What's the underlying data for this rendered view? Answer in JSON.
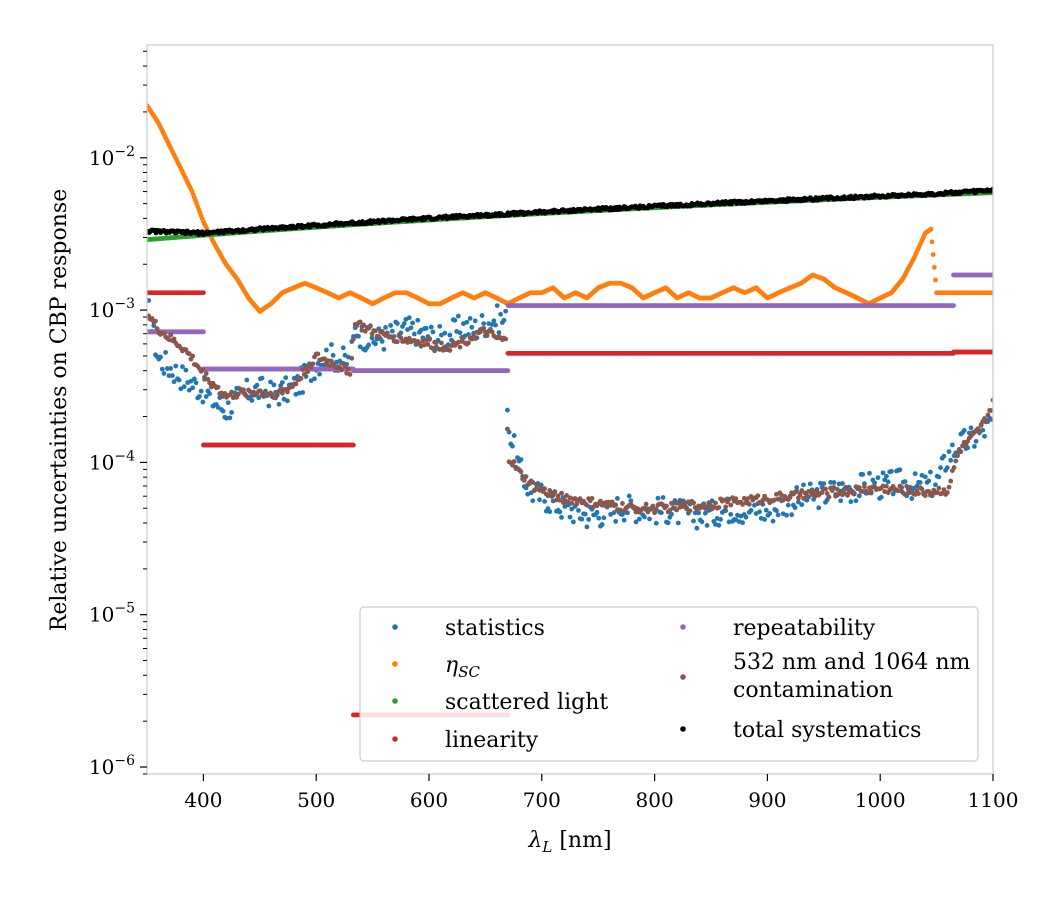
{
  "chart_data": {
    "type": "scatter",
    "xlabel": "λL [nm]",
    "ylabel": "Relative uncertainties on CBP response",
    "xlim": [
      350,
      1100
    ],
    "ylim": [
      9e-07,
      0.055
    ],
    "yscale": "log",
    "grid": false,
    "legend_position": "lower-right",
    "x_ticks": [
      400,
      500,
      600,
      700,
      800,
      900,
      1000,
      1100
    ],
    "x_tick_labels": [
      "400",
      "500",
      "600",
      "700",
      "800",
      "900",
      "1000",
      "1100"
    ],
    "y_ticks": [
      1e-06,
      1e-05,
      0.0001,
      0.001,
      0.01
    ],
    "y_tick_labels": [
      "10−6",
      "10−5",
      "10−4",
      "10−3",
      "10−2"
    ],
    "series": [
      {
        "name": "statistics",
        "color": "#1f77b4",
        "x": [
          350,
          360,
          370,
          380,
          390,
          400,
          410,
          420,
          430,
          440,
          450,
          460,
          470,
          480,
          490,
          500,
          510,
          520,
          530,
          535,
          540,
          550,
          560,
          570,
          580,
          590,
          600,
          610,
          620,
          630,
          640,
          650,
          660,
          668,
          670,
          680,
          690,
          700,
          710,
          720,
          730,
          740,
          750,
          760,
          770,
          780,
          790,
          800,
          810,
          820,
          830,
          840,
          850,
          860,
          870,
          880,
          890,
          900,
          910,
          920,
          930,
          940,
          950,
          960,
          970,
          980,
          990,
          1000,
          1010,
          1020,
          1030,
          1040,
          1050,
          1060,
          1070,
          1080,
          1090,
          1100
        ],
        "y": [
          0.0011,
          0.00048,
          0.00042,
          0.00037,
          0.00033,
          0.0003,
          0.00025,
          0.00022,
          0.00026,
          0.00029,
          0.0003,
          0.00028,
          0.00029,
          0.00031,
          0.00036,
          0.00045,
          0.0005,
          0.00048,
          0.00045,
          0.00078,
          0.00068,
          0.00064,
          0.00066,
          0.0007,
          0.00075,
          0.00072,
          0.00068,
          0.00065,
          0.0007,
          0.00078,
          0.00075,
          0.00082,
          0.00088,
          0.00085,
          0.00018,
          9e-05,
          6.5e-05,
          6e-05,
          5.5e-05,
          5e-05,
          4.8e-05,
          4.5e-05,
          4.6e-05,
          4.7e-05,
          5.2e-05,
          5e-05,
          5e-05,
          4.8e-05,
          4.9e-05,
          4.7e-05,
          4.6e-05,
          4.5e-05,
          4.6e-05,
          4.8e-05,
          5e-05,
          4.8e-05,
          5e-05,
          4.7e-05,
          5.2e-05,
          5.5e-05,
          5.8e-05,
          6e-05,
          6.2e-05,
          6.5e-05,
          6.6e-05,
          6.8e-05,
          7.2e-05,
          7e-05,
          7.2e-05,
          7.4e-05,
          6.9e-05,
          7e-05,
          7.3e-05,
          0.00011,
          0.00013,
          0.00014,
          0.00016,
          0.00018
        ]
      },
      {
        "name": "ηSC",
        "color": "#ff7f0e",
        "x": [
          350,
          360,
          370,
          380,
          390,
          400,
          410,
          420,
          430,
          440,
          450,
          460,
          470,
          480,
          490,
          500,
          510,
          520,
          530,
          540,
          550,
          560,
          570,
          580,
          590,
          600,
          610,
          620,
          630,
          640,
          650,
          660,
          670,
          680,
          690,
          700,
          710,
          720,
          730,
          740,
          750,
          760,
          770,
          780,
          790,
          800,
          810,
          820,
          830,
          840,
          850,
          860,
          870,
          880,
          890,
          900,
          910,
          920,
          930,
          940,
          950,
          960,
          970,
          980,
          990,
          1000,
          1010,
          1020,
          1030,
          1040,
          1045,
          1050,
          1060,
          1070,
          1080,
          1090,
          1100
        ],
        "y": [
          0.022,
          0.017,
          0.012,
          0.0085,
          0.006,
          0.0038,
          0.0027,
          0.002,
          0.0016,
          0.0012,
          0.00098,
          0.0011,
          0.0013,
          0.0014,
          0.0015,
          0.0014,
          0.0013,
          0.0012,
          0.0013,
          0.0012,
          0.0011,
          0.0012,
          0.0013,
          0.0013,
          0.0012,
          0.0011,
          0.0011,
          0.0012,
          0.0013,
          0.0012,
          0.0013,
          0.0012,
          0.0011,
          0.0012,
          0.0013,
          0.0013,
          0.0014,
          0.0012,
          0.0013,
          0.0012,
          0.0014,
          0.0015,
          0.0015,
          0.0014,
          0.0012,
          0.0013,
          0.0014,
          0.0012,
          0.0013,
          0.0012,
          0.0012,
          0.0013,
          0.0014,
          0.0013,
          0.0014,
          0.0012,
          0.0013,
          0.0014,
          0.0015,
          0.0017,
          0.0016,
          0.0014,
          0.0013,
          0.0012,
          0.0011,
          0.0012,
          0.0013,
          0.0016,
          0.0022,
          0.0032,
          0.0034,
          0.0013,
          0.0013,
          0.0013,
          0.0013,
          0.0013,
          0.0013
        ]
      },
      {
        "name": "scattered light",
        "color": "#2ca02c",
        "x": [
          350,
          400,
          450,
          500,
          550,
          600,
          650,
          700,
          750,
          800,
          850,
          900,
          950,
          1000,
          1050,
          1100
        ],
        "y": [
          0.0029,
          0.0031,
          0.0033,
          0.0035,
          0.0037,
          0.0039,
          0.0041,
          0.0043,
          0.0045,
          0.0047,
          0.0049,
          0.0051,
          0.0053,
          0.0055,
          0.0057,
          0.0059
        ]
      },
      {
        "name": "linearity",
        "color": "#d62728",
        "segments": [
          {
            "x": [
              350,
              400
            ],
            "y": 0.0013
          },
          {
            "x": [
              400,
              533
            ],
            "y": 0.00013
          },
          {
            "x": [
              533,
              670
            ],
            "y": 2.2e-06
          },
          {
            "x": [
              670,
              1065
            ],
            "y": 0.00052
          },
          {
            "x": [
              1065,
              1100
            ],
            "y": 0.00053
          }
        ]
      },
      {
        "name": "repeatability",
        "color": "#9467bd",
        "segments": [
          {
            "x": [
              350,
              400
            ],
            "y": 0.00072
          },
          {
            "x": [
              400,
              533
            ],
            "y": 0.00041
          },
          {
            "x": [
              533,
              670
            ],
            "y": 0.0004
          },
          {
            "x": [
              670,
              1065
            ],
            "y": 0.00107
          },
          {
            "x": [
              1065,
              1100
            ],
            "y": 0.0017
          }
        ]
      },
      {
        "name": "532 nm and 1064 nm contamination",
        "color": "#8c564b",
        "x": [
          350,
          360,
          370,
          380,
          390,
          400,
          410,
          420,
          430,
          440,
          450,
          460,
          470,
          480,
          490,
          500,
          510,
          520,
          530,
          535,
          540,
          550,
          560,
          570,
          580,
          590,
          600,
          610,
          620,
          630,
          640,
          650,
          660,
          668,
          670,
          680,
          690,
          700,
          720,
          740,
          760,
          780,
          800,
          820,
          840,
          860,
          880,
          900,
          920,
          940,
          960,
          980,
          1000,
          1020,
          1040,
          1060,
          1070,
          1080,
          1090,
          1100
        ],
        "y": [
          0.00095,
          0.00075,
          0.00065,
          0.00058,
          0.00048,
          0.00038,
          0.00032,
          0.00027,
          0.00028,
          0.00029,
          0.00029,
          0.00028,
          0.00029,
          0.00032,
          0.0004,
          0.00049,
          0.00046,
          0.00043,
          0.0004,
          0.00085,
          0.00078,
          0.00072,
          0.00068,
          0.00066,
          0.00064,
          0.00062,
          0.0006,
          0.00058,
          0.00058,
          0.00062,
          0.00068,
          0.00072,
          0.00065,
          0.00062,
          0.00011,
          8.5e-05,
          7.2e-05,
          6.5e-05,
          5.8e-05,
          5.5e-05,
          5.2e-05,
          5e-05,
          5e-05,
          5.1e-05,
          5.2e-05,
          5.4e-05,
          5.6e-05,
          5.8e-05,
          6e-05,
          6.2e-05,
          6.4e-05,
          6.6e-05,
          6.8e-05,
          6.6e-05,
          6.4e-05,
          6.6e-05,
          0.00012,
          0.00014,
          0.00017,
          0.00024
        ]
      },
      {
        "name": "total systematics",
        "color": "#000000",
        "x": [
          350,
          400,
          450,
          500,
          550,
          600,
          650,
          700,
          750,
          800,
          850,
          900,
          950,
          1000,
          1050,
          1100
        ],
        "y": [
          0.0033,
          0.0032,
          0.0034,
          0.0036,
          0.0038,
          0.004,
          0.0042,
          0.0044,
          0.0046,
          0.0048,
          0.005,
          0.0052,
          0.0054,
          0.0056,
          0.0058,
          0.0061
        ]
      }
    ],
    "legend": [
      {
        "label": "statistics",
        "color": "#1f77b4"
      },
      {
        "label": "ηSC",
        "color": "#ff7f0e"
      },
      {
        "label": "scattered light",
        "color": "#2ca02c"
      },
      {
        "label": "linearity",
        "color": "#d62728"
      },
      {
        "label": "repeatability",
        "color": "#9467bd"
      },
      {
        "label": "532 nm and 1064 nm",
        "label2": "contamination",
        "color": "#8c564b"
      },
      {
        "label": "total systematics",
        "color": "#000000"
      }
    ]
  }
}
